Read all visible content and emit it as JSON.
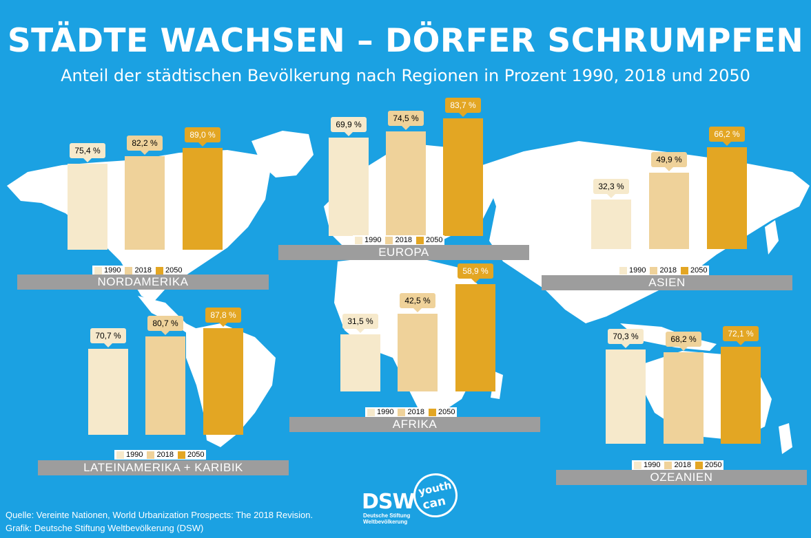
{
  "title": "STÄDTE WACHSEN – DÖRFER SCHRUMPFEN",
  "subtitle": "Anteil der städtischen Bevölkerung nach Regionen in Prozent 1990, 2018 und 2050",
  "colors": {
    "background": "#1ba1e2",
    "map": "#ffffff",
    "y1990": "#f6e9cb",
    "y2018": "#efd29a",
    "y2050": "#e3a623",
    "region_band": "#9d9d9d"
  },
  "chart_data": [
    {
      "type": "bar",
      "title": "NORDAMERIKA",
      "categories": [
        "1990",
        "2018",
        "2050"
      ],
      "values": [
        75.4,
        82.2,
        89.0
      ],
      "labels": [
        "75,4 %",
        "82,2 %",
        "89,0 %"
      ],
      "ylim": [
        0,
        100
      ]
    },
    {
      "type": "bar",
      "title": "EUROPA",
      "categories": [
        "1990",
        "2018",
        "2050"
      ],
      "values": [
        69.9,
        74.5,
        83.7
      ],
      "labels": [
        "69,9 %",
        "74,5 %",
        "83,7 %"
      ],
      "ylim": [
        0,
        100
      ]
    },
    {
      "type": "bar",
      "title": "ASIEN",
      "categories": [
        "1990",
        "2018",
        "2050"
      ],
      "values": [
        32.3,
        49.9,
        66.2
      ],
      "labels": [
        "32,3 %",
        "49,9 %",
        "66,2 %"
      ],
      "ylim": [
        0,
        100
      ]
    },
    {
      "type": "bar",
      "title": "LATEINAMERIKA + KARIBIK",
      "categories": [
        "1990",
        "2018",
        "2050"
      ],
      "values": [
        70.7,
        80.7,
        87.8
      ],
      "labels": [
        "70,7 %",
        "80,7 %",
        "87,8 %"
      ],
      "ylim": [
        0,
        100
      ]
    },
    {
      "type": "bar",
      "title": "AFRIKA",
      "categories": [
        "1990",
        "2018",
        "2050"
      ],
      "values": [
        31.5,
        42.5,
        58.9
      ],
      "labels": [
        "31,5 %",
        "42,5 %",
        "58,9 %"
      ],
      "ylim": [
        0,
        100
      ]
    },
    {
      "type": "bar",
      "title": "OZEANIEN",
      "categories": [
        "1990",
        "2018",
        "2050"
      ],
      "values": [
        70.3,
        68.2,
        72.1
      ],
      "labels": [
        "70,3 %",
        "68,2 %",
        "72,1 %"
      ],
      "ylim": [
        0,
        100
      ]
    }
  ],
  "source": {
    "line1": "Quelle: Vereinte Nationen, World Urbanization Prospects: The 2018 Revision.",
    "line2": "Grafik: Deutsche Stiftung Weltbevölkerung (DSW)"
  },
  "logo": {
    "dsw": "DSW",
    "sub1": "Deutsche Stiftung",
    "sub2": "Weltbevölkerung",
    "youth": "youth",
    "can": "can"
  }
}
